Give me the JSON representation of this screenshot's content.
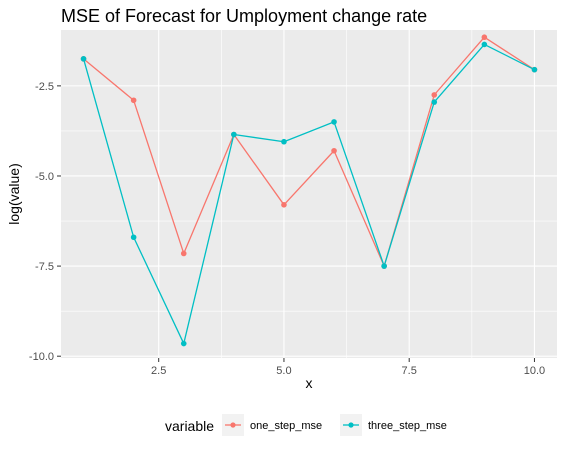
{
  "chart_data": {
    "type": "line",
    "title": "MSE of Forecast for Umployment change rate",
    "xlabel": "x",
    "ylabel": "log(value)",
    "xlim": [
      0.55,
      10.45
    ],
    "ylim": [
      -10.05,
      -0.95
    ],
    "x_ticks": [
      2.5,
      5.0,
      7.5,
      10.0
    ],
    "x_tick_labels": [
      "2.5",
      "5.0",
      "7.5",
      "10.0"
    ],
    "y_ticks": [
      -2.5,
      -5.0,
      -7.5,
      -10.0
    ],
    "y_tick_labels": [
      "-2.5",
      "-5.0",
      "-7.5",
      "-10.0"
    ],
    "grid": true,
    "legend": {
      "title": "variable",
      "position": "bottom"
    },
    "x": [
      1,
      2,
      3,
      4,
      5,
      6,
      7,
      8,
      9,
      10
    ],
    "series": [
      {
        "name": "one_step_mse",
        "color": "#F8766D",
        "values": [
          -1.75,
          -2.9,
          -7.15,
          -3.85,
          -5.8,
          -4.3,
          -7.5,
          -2.75,
          -1.15,
          -2.05
        ]
      },
      {
        "name": "three_step_mse",
        "color": "#00BFC4",
        "values": [
          -1.75,
          -6.7,
          -9.65,
          -3.85,
          -4.05,
          -3.5,
          -7.5,
          -2.95,
          -1.35,
          -2.05
        ]
      }
    ]
  }
}
